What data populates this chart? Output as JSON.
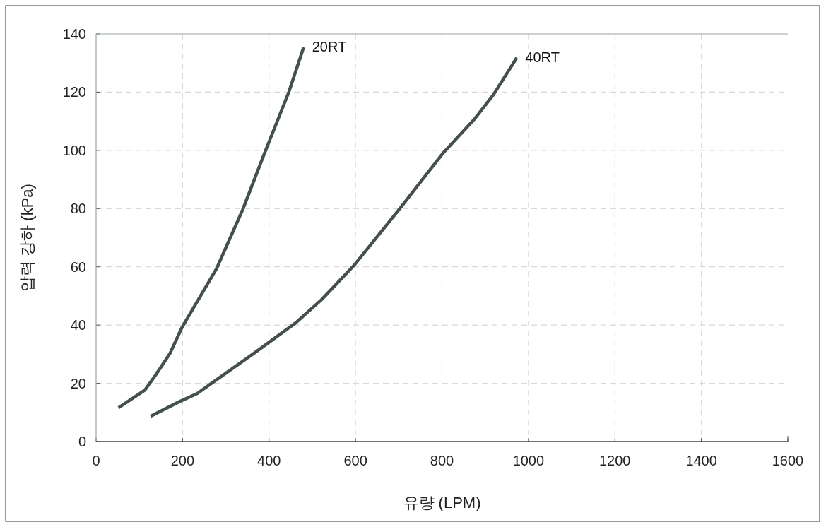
{
  "chart_data": {
    "type": "line",
    "xlabel": "유량 (LPM)",
    "ylabel": "압력 강하 (kPa)",
    "xlim": [
      0,
      1600
    ],
    "xticks": [
      0,
      200,
      400,
      600,
      800,
      1000,
      1200,
      1400,
      1600
    ],
    "ylim": [
      0,
      140
    ],
    "yticks": [
      0,
      20,
      40,
      60,
      80,
      100,
      120,
      140
    ],
    "grid": true,
    "line_style": "solid",
    "marker": "none",
    "legend": false,
    "series": [
      {
        "name": "20RT",
        "color": "#454f4f",
        "x": [
          52,
          99,
          113,
          139,
          171,
          199,
          279,
          339,
          389,
          446,
          480
        ],
        "values": [
          11.6,
          16.3,
          17.7,
          23.1,
          30.3,
          39.3,
          59.5,
          79.6,
          98.8,
          120.1,
          135.4
        ]
      },
      {
        "name": "40RT",
        "color": "#454f4f",
        "x": [
          126,
          194,
          234,
          268,
          365,
          462,
          522,
          596,
          703,
          801,
          876,
          919,
          973
        ],
        "values": [
          8.7,
          13.8,
          16.5,
          20.1,
          30.3,
          40.8,
          48.8,
          60.4,
          80.1,
          98.8,
          110.9,
          119.1,
          131.8
        ]
      }
    ]
  }
}
